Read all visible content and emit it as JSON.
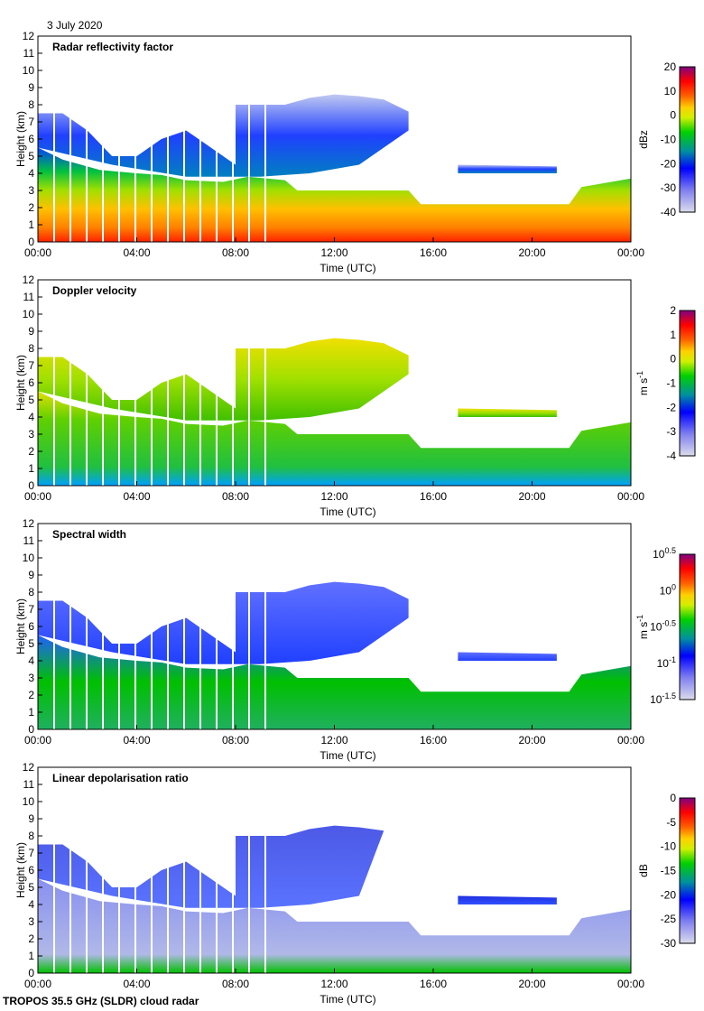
{
  "date_label": "3 July 2020",
  "footer": "TROPOS 35.5 GHz (SLDR) cloud radar",
  "chart_data": [
    {
      "type": "heatmap",
      "title": "Radar reflectivity factor",
      "xlabel": "Time (UTC)",
      "ylabel": "Height (km)",
      "xticks": [
        "00:00",
        "04:00",
        "08:00",
        "12:00",
        "16:00",
        "20:00",
        "00:00"
      ],
      "yticks": [
        "0",
        "1",
        "2",
        "3",
        "4",
        "5",
        "6",
        "7",
        "8",
        "9",
        "10",
        "11",
        "12"
      ],
      "ylim": [
        0,
        12
      ],
      "colorbar": {
        "label": "dBz",
        "ticks": [
          "-40",
          "-30",
          "-20",
          "-10",
          "0",
          "10",
          "20"
        ],
        "range": [
          -40,
          20
        ]
      }
    },
    {
      "type": "heatmap",
      "title": "Doppler velocity",
      "xlabel": "Time (UTC)",
      "ylabel": "Height (km)",
      "xticks": [
        "00:00",
        "04:00",
        "08:00",
        "12:00",
        "16:00",
        "20:00",
        "00:00"
      ],
      "yticks": [
        "0",
        "1",
        "2",
        "3",
        "4",
        "5",
        "6",
        "7",
        "8",
        "9",
        "10",
        "11",
        "12"
      ],
      "ylim": [
        0,
        12
      ],
      "colorbar": {
        "label": "m s-1",
        "ticks": [
          "-4",
          "-3",
          "-2",
          "-1",
          "0",
          "1",
          "2"
        ],
        "range": [
          -4,
          2
        ]
      }
    },
    {
      "type": "heatmap",
      "title": "Spectral width",
      "xlabel": "Time (UTC)",
      "ylabel": "Height (km)",
      "xticks": [
        "00:00",
        "04:00",
        "08:00",
        "12:00",
        "16:00",
        "20:00",
        "00:00"
      ],
      "yticks": [
        "0",
        "1",
        "2",
        "3",
        "4",
        "5",
        "6",
        "7",
        "8",
        "9",
        "10",
        "11",
        "12"
      ],
      "ylim": [
        0,
        12
      ],
      "colorbar": {
        "label": "m s-1",
        "ticks": [
          "10^-1.5",
          "10^-1",
          "10^-0.5",
          "10^0",
          "10^0.5"
        ],
        "range": [
          -1.5,
          0.5
        ],
        "scale": "log"
      }
    },
    {
      "type": "heatmap",
      "title": "Linear depolarisation ratio",
      "xlabel": "Time (UTC)",
      "ylabel": "Height (km)",
      "xticks": [
        "00:00",
        "04:00",
        "08:00",
        "12:00",
        "16:00",
        "20:00",
        "00:00"
      ],
      "yticks": [
        "0",
        "1",
        "2",
        "3",
        "4",
        "5",
        "6",
        "7",
        "8",
        "9",
        "10",
        "11",
        "12"
      ],
      "ylim": [
        0,
        12
      ],
      "colorbar": {
        "label": "dB",
        "ticks": [
          "-30",
          "-25",
          "-20",
          "-15",
          "-10",
          "-5",
          "0"
        ],
        "range": [
          -30,
          0
        ]
      }
    }
  ]
}
